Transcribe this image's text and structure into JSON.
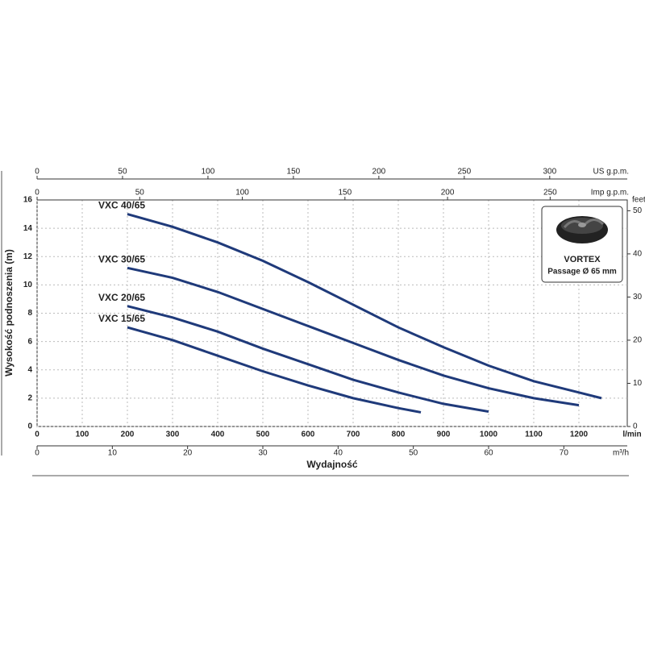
{
  "chart_data": {
    "type": "line",
    "y_label": "Wysokość podnoszenia (m)",
    "x_label": "Wydajność",
    "x_unit": "l/min",
    "xlim": [
      0,
      1300
    ],
    "xticks": [
      0,
      100,
      200,
      300,
      400,
      500,
      600,
      700,
      800,
      900,
      1000,
      1100,
      1200
    ],
    "ylim": [
      0,
      16
    ],
    "yticks": [
      0,
      2,
      4,
      6,
      8,
      10,
      12,
      14,
      16
    ],
    "grid": true,
    "secondary_axes": [
      {
        "position": "top",
        "unit": "US g.p.m.",
        "lim": [
          0,
          343.5
        ],
        "ticks": [
          0,
          50,
          100,
          150,
          200,
          250,
          300
        ]
      },
      {
        "position": "top",
        "unit": "Imp g.p.m.",
        "lim": [
          0,
          286
        ],
        "ticks": [
          0,
          50,
          100,
          150,
          200,
          250
        ]
      },
      {
        "position": "bottom",
        "unit": "m³/h",
        "lim": [
          0,
          78
        ],
        "ticks": [
          0,
          10,
          20,
          30,
          40,
          50,
          60,
          70
        ]
      },
      {
        "position": "right",
        "unit": "feet",
        "lim": [
          0,
          52.5
        ],
        "ticks": [
          0,
          10,
          20,
          30,
          40,
          50
        ]
      }
    ],
    "series": [
      {
        "name": "VXC 40/65",
        "color": "#1f3a7a",
        "x": [
          200,
          300,
          400,
          500,
          600,
          700,
          800,
          900,
          1000,
          1100,
          1200,
          1250
        ],
        "values": [
          15,
          14.1,
          13,
          11.7,
          10.2,
          8.6,
          7,
          5.6,
          4.3,
          3.2,
          2.4,
          2
        ]
      },
      {
        "name": "VXC 30/65",
        "color": "#1f3a7a",
        "x": [
          200,
          300,
          400,
          500,
          600,
          700,
          800,
          900,
          1000,
          1100,
          1200
        ],
        "values": [
          11.2,
          10.5,
          9.5,
          8.3,
          7.1,
          5.9,
          4.7,
          3.6,
          2.7,
          2,
          1.5
        ]
      },
      {
        "name": "VXC 20/65",
        "color": "#1f3a7a",
        "x": [
          200,
          300,
          400,
          500,
          600,
          700,
          800,
          900,
          1000
        ],
        "values": [
          8.5,
          7.7,
          6.7,
          5.5,
          4.4,
          3.3,
          2.4,
          1.6,
          1.05
        ]
      },
      {
        "name": "VXC 15/65",
        "color": "#1f3a7a",
        "x": [
          200,
          300,
          400,
          500,
          600,
          700,
          800,
          850
        ],
        "values": [
          7,
          6.1,
          5,
          3.9,
          2.9,
          2,
          1.3,
          1
        ]
      }
    ],
    "inset": {
      "title": "VORTEX",
      "text": "Passage Ø 65 mm"
    }
  }
}
